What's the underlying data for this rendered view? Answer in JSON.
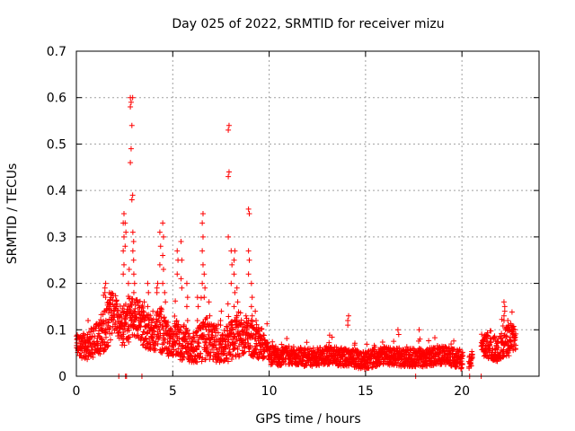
{
  "chart_data": {
    "type": "scatter",
    "title": "Day 025 of 2022, SRMTID for receiver mizu",
    "xlabel": "GPS time / hours",
    "ylabel": "SRMTID / TECUs",
    "xlim": [
      0,
      24
    ],
    "ylim": [
      0,
      0.7
    ],
    "xticks": [
      0,
      5,
      10,
      15,
      20
    ],
    "xtick_labels": [
      "0",
      "5",
      "10",
      "15",
      "20"
    ],
    "yticks": [
      0,
      0.1,
      0.2,
      0.3,
      0.4,
      0.5,
      0.6,
      0.7
    ],
    "ytick_labels": [
      "0",
      "0.1",
      "0.2",
      "0.3",
      "0.4",
      "0.5",
      "0.6",
      "0.7"
    ],
    "grid": true,
    "marker": "+",
    "colors": {
      "points": "#ff0000",
      "grid": "#a0a0a0",
      "axes": "#000000"
    },
    "series": [
      {
        "name": "mizu",
        "envelope": {
          "x": [
            0.0,
            0.5,
            1.0,
            1.5,
            1.8,
            2.0,
            2.3,
            2.6,
            2.9,
            3.2,
            3.6,
            4.0,
            4.4,
            4.8,
            5.2,
            5.6,
            6.0,
            6.4,
            6.8,
            7.2,
            7.6,
            8.0,
            8.4,
            8.8,
            9.2,
            9.6,
            10.0,
            10.5,
            11.0,
            12.0,
            13.0,
            14.0,
            15.0,
            16.0,
            17.0,
            18.0,
            19.0,
            20.0,
            20.4,
            21.0,
            21.5,
            22.0,
            22.5,
            22.8
          ],
          "base": [
            0.07,
            0.06,
            0.08,
            0.1,
            0.13,
            0.14,
            0.1,
            0.12,
            0.13,
            0.12,
            0.1,
            0.09,
            0.1,
            0.07,
            0.08,
            0.07,
            0.06,
            0.07,
            0.08,
            0.07,
            0.06,
            0.08,
            0.09,
            0.09,
            0.08,
            0.07,
            0.05,
            0.04,
            0.045,
            0.04,
            0.045,
            0.04,
            0.035,
            0.045,
            0.04,
            0.04,
            0.045,
            0.035,
            0.03,
            0.07,
            0.06,
            0.06,
            0.08,
            0.08
          ],
          "spread": [
            0.02,
            0.03,
            0.035,
            0.05,
            0.05,
            0.04,
            0.04,
            0.05,
            0.05,
            0.05,
            0.04,
            0.04,
            0.05,
            0.03,
            0.04,
            0.04,
            0.03,
            0.04,
            0.05,
            0.04,
            0.035,
            0.045,
            0.05,
            0.04,
            0.04,
            0.035,
            0.025,
            0.02,
            0.02,
            0.02,
            0.02,
            0.02,
            0.02,
            0.02,
            0.02,
            0.02,
            0.02,
            0.02,
            0.015,
            0.025,
            0.025,
            0.03,
            0.035,
            0.025
          ],
          "gaps": [
            [
              20.05,
              20.35
            ],
            [
              20.55,
              21.0
            ]
          ],
          "step_hours": 0.0085
        },
        "spikes": [
          {
            "x": 2.45,
            "y": [
              0.22,
              0.24,
              0.27,
              0.3,
              0.33,
              0.35
            ]
          },
          {
            "x": 2.55,
            "y": [
              0.28,
              0.31,
              0.33
            ]
          },
          {
            "x": 2.72,
            "y": [
              0.2,
              0.23
            ]
          },
          {
            "x": 2.82,
            "y": [
              0.46,
              0.49,
              0.58,
              0.59,
              0.6
            ]
          },
          {
            "x": 2.9,
            "y": [
              0.54,
              0.6,
              0.38,
              0.39
            ]
          },
          {
            "x": 2.95,
            "y": [
              0.31,
              0.29,
              0.27,
              0.25
            ]
          },
          {
            "x": 3.0,
            "y": [
              0.22,
              0.2,
              0.18,
              0.16,
              0.14
            ]
          },
          {
            "x": 3.35,
            "y": [
              0.12,
              0.14
            ]
          },
          {
            "x": 3.5,
            "y": [
              0.14,
              0.16,
              0.13
            ]
          },
          {
            "x": 3.72,
            "y": [
              0.15,
              0.18,
              0.2
            ]
          },
          {
            "x": 3.95,
            "y": [
              0.12,
              0.14
            ]
          },
          {
            "x": 4.2,
            "y": [
              0.18,
              0.2,
              0.19
            ]
          },
          {
            "x": 4.35,
            "y": [
              0.24,
              0.28,
              0.31
            ]
          },
          {
            "x": 4.5,
            "y": [
              0.33,
              0.3,
              0.26,
              0.23,
              0.2
            ]
          },
          {
            "x": 4.6,
            "y": [
              0.18,
              0.16
            ]
          },
          {
            "x": 5.25,
            "y": [
              0.22,
              0.25,
              0.27
            ]
          },
          {
            "x": 5.45,
            "y": [
              0.29,
              0.25,
              0.21,
              0.19
            ]
          },
          {
            "x": 5.75,
            "y": [
              0.2,
              0.17,
              0.15,
              0.12
            ]
          },
          {
            "x": 6.3,
            "y": [
              0.12,
              0.15,
              0.17
            ]
          },
          {
            "x": 6.55,
            "y": [
              0.2,
              0.24,
              0.27,
              0.3,
              0.33,
              0.35
            ]
          },
          {
            "x": 6.65,
            "y": [
              0.22,
              0.19,
              0.17
            ]
          },
          {
            "x": 6.9,
            "y": [
              0.16,
              0.13,
              0.1
            ]
          },
          {
            "x": 7.5,
            "y": [
              0.12,
              0.14,
              0.11
            ]
          },
          {
            "x": 7.9,
            "y": [
              0.43,
              0.44,
              0.53,
              0.54,
              0.3
            ]
          },
          {
            "x": 8.05,
            "y": [
              0.27,
              0.24,
              0.2
            ]
          },
          {
            "x": 8.2,
            "y": [
              0.25,
              0.27,
              0.22,
              0.18,
              0.15
            ]
          },
          {
            "x": 8.35,
            "y": [
              0.19,
              0.16,
              0.13
            ]
          },
          {
            "x": 8.95,
            "y": [
              0.36,
              0.35,
              0.27,
              0.25,
              0.22
            ]
          },
          {
            "x": 9.1,
            "y": [
              0.2,
              0.17,
              0.15,
              0.13
            ]
          },
          {
            "x": 9.3,
            "y": [
              0.14,
              0.12,
              0.1
            ]
          },
          {
            "x": 1.5,
            "y": [
              0.18,
              0.2,
              0.19,
              0.17
            ]
          },
          {
            "x": 1.7,
            "y": [
              0.16,
              0.18,
              0.15
            ]
          },
          {
            "x": 14.1,
            "y": [
              0.12,
              0.13,
              0.11
            ]
          },
          {
            "x": 16.7,
            "y": [
              0.1,
              0.09
            ]
          },
          {
            "x": 17.8,
            "y": [
              0.1,
              0.08
            ]
          },
          {
            "x": 22.2,
            "y": [
              0.13,
              0.15,
              0.16,
              0.14,
              0.12
            ]
          },
          {
            "x": 22.4,
            "y": [
              0.12,
              0.11
            ]
          }
        ],
        "zeros": [
          2.2,
          2.55,
          2.6,
          3.4,
          17.6,
          20.4,
          21.0
        ]
      }
    ]
  }
}
